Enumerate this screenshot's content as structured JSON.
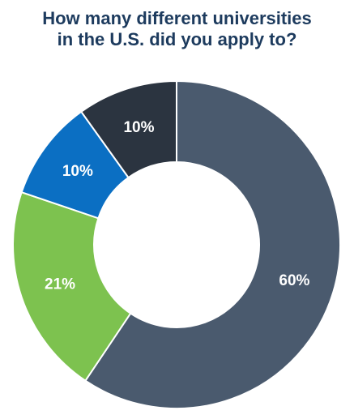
{
  "chart_data": {
    "type": "pie",
    "title_lines": [
      "How many different universities",
      "in the U.S. did you apply to?"
    ],
    "donut": true,
    "slices": [
      {
        "label": "60%",
        "value": 60,
        "color": "#4a5a6e"
      },
      {
        "label": "21%",
        "value": 21,
        "color": "#7dc24f"
      },
      {
        "label": "10%",
        "value": 10,
        "color": "#0b6fc3"
      },
      {
        "label": "10%",
        "value": 10,
        "color": "#2b3440"
      }
    ]
  }
}
